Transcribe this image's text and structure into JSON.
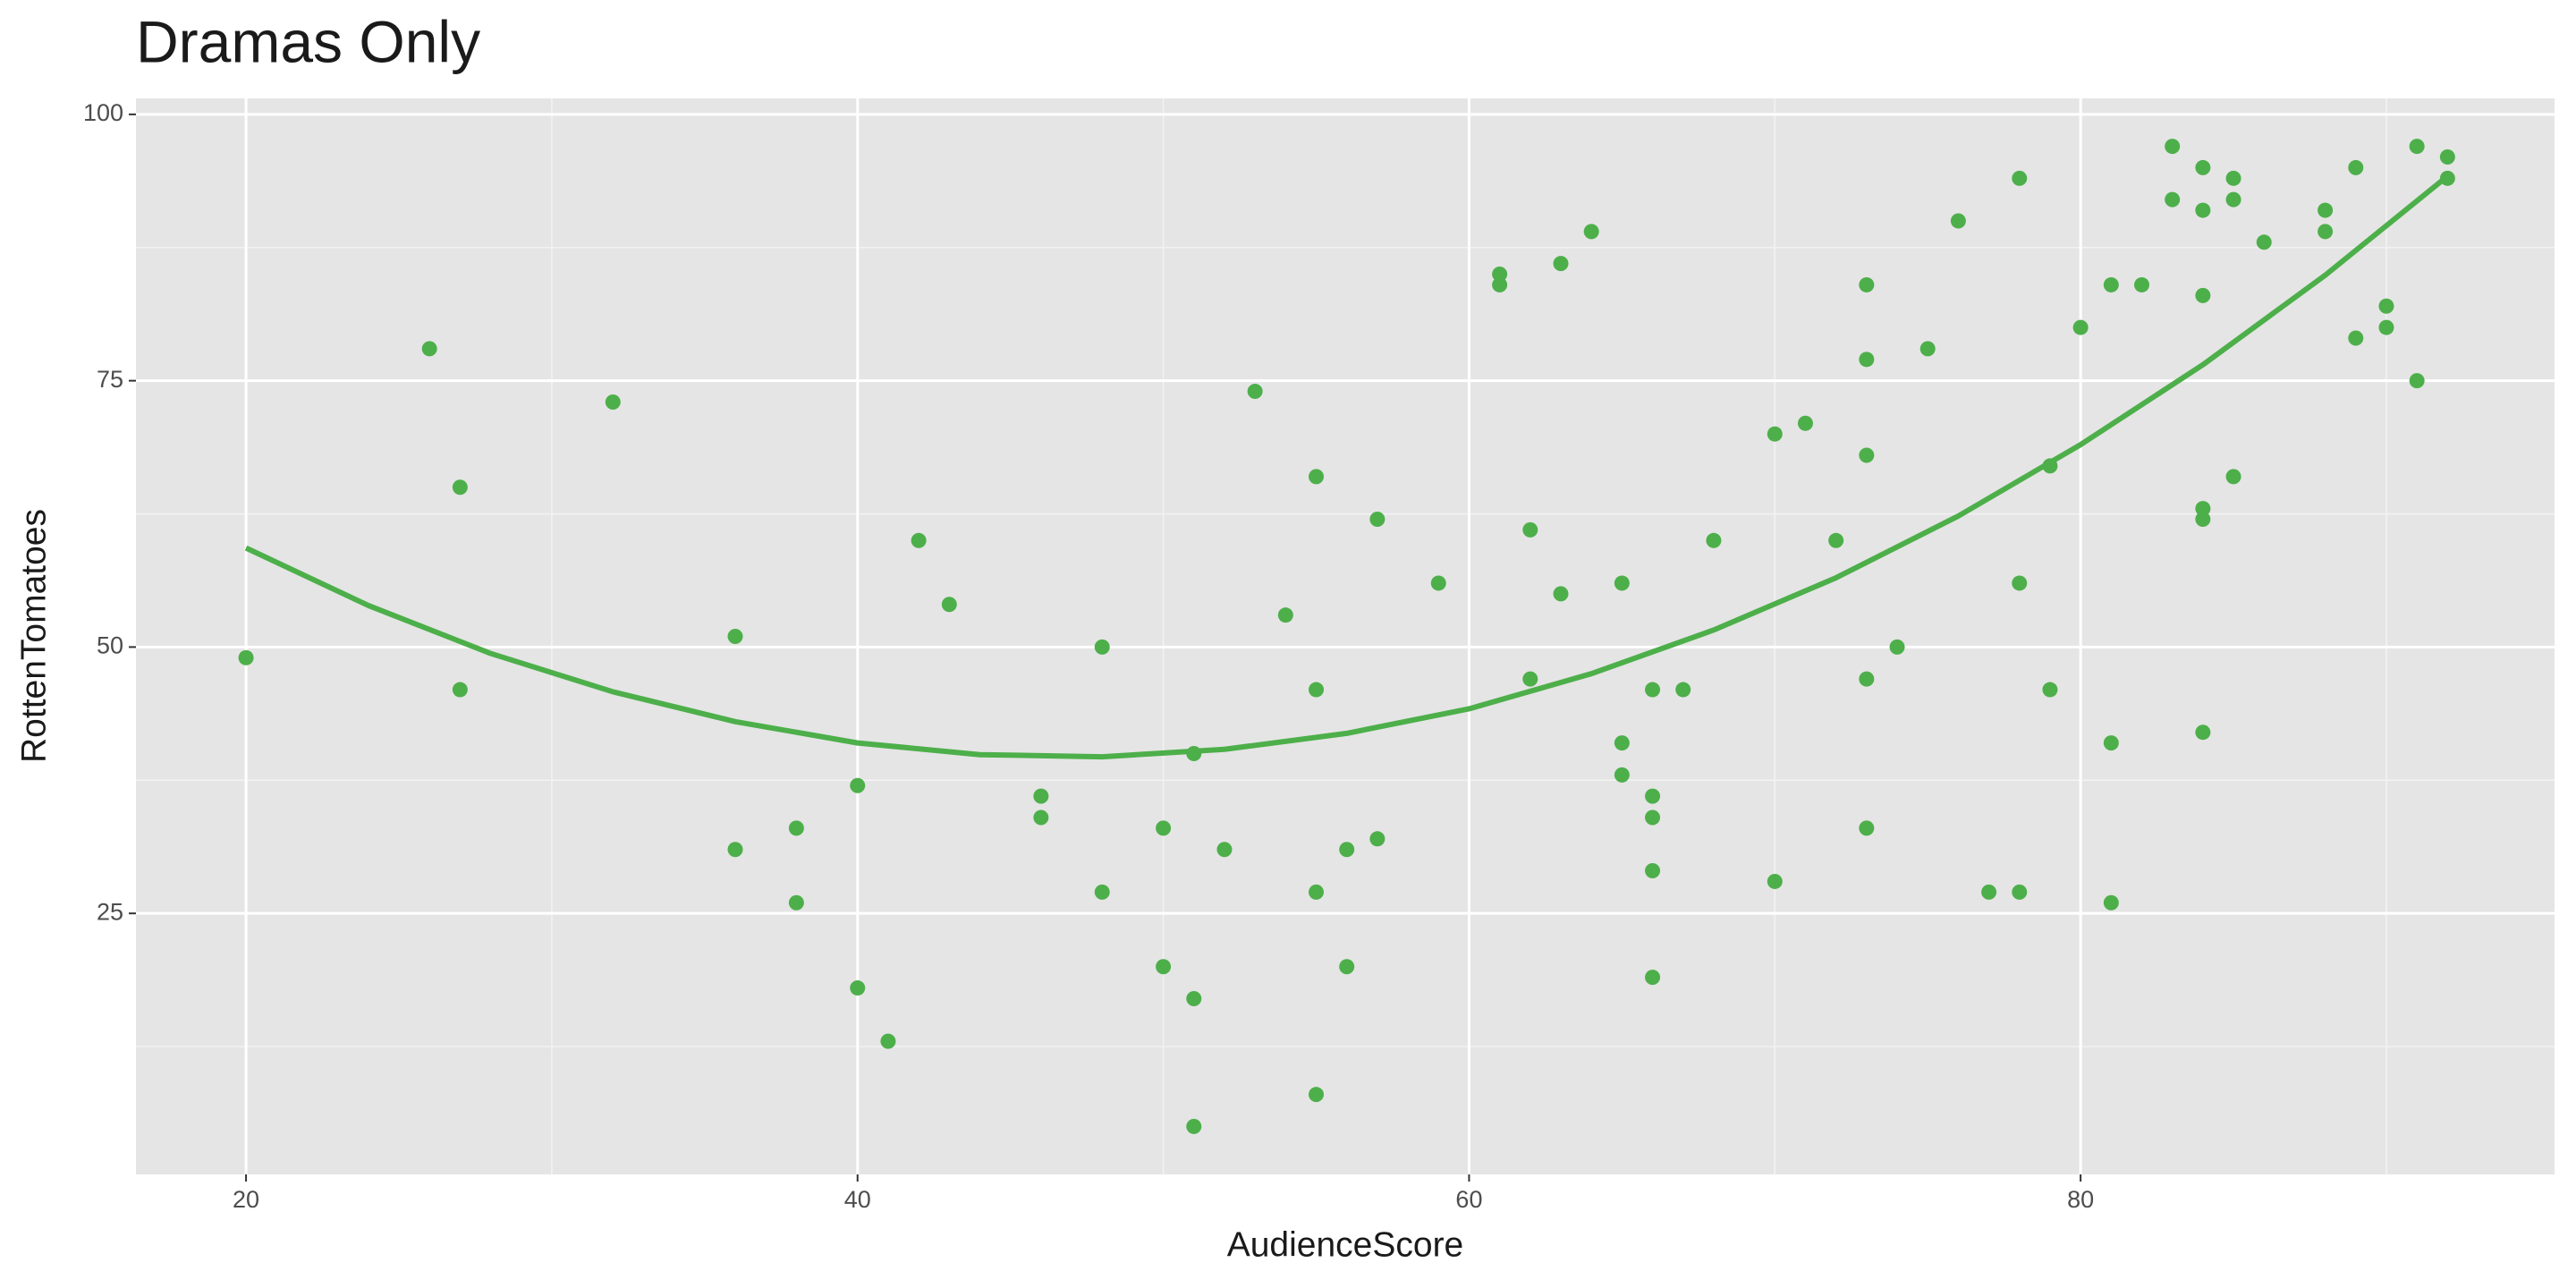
{
  "chart_data": {
    "type": "scatter",
    "title": "Dramas Only",
    "x_label": "AudienceScore",
    "y_label": "RottenTomatoes",
    "xlim": [
      16.4,
      95.5
    ],
    "ylim": [
      0.5,
      101.5
    ],
    "xticks": [
      20,
      40,
      60,
      80
    ],
    "yticks": [
      25,
      50,
      75,
      100
    ],
    "x_minor_grid": [
      30,
      50,
      70,
      90
    ],
    "y_minor_grid": [
      12.5,
      37.5,
      62.5,
      87.5
    ],
    "grid": true,
    "series": [
      {
        "marker": "point",
        "color": "#4daf4a",
        "x": [
          20,
          26,
          27,
          27,
          32,
          36,
          36,
          38,
          38,
          40,
          40,
          41,
          42,
          43,
          46,
          46,
          48,
          48,
          50,
          50,
          51,
          51,
          51,
          52,
          53,
          54,
          55,
          55,
          55,
          55,
          56,
          56,
          57,
          57,
          59,
          61,
          61,
          62,
          62,
          63,
          63,
          64,
          65,
          65,
          65,
          66,
          66,
          66,
          66,
          66,
          67,
          68,
          70,
          70,
          71,
          72,
          73,
          73,
          73,
          73,
          73,
          74,
          75,
          76,
          77,
          78,
          78,
          78,
          79,
          79,
          80,
          81,
          81,
          81,
          82,
          83,
          83,
          84,
          84,
          84,
          84,
          84,
          84,
          85,
          85,
          85,
          86,
          88,
          88,
          89,
          89,
          90,
          90,
          91,
          91,
          92,
          92
        ],
        "values": [
          49,
          78,
          65,
          46,
          73,
          51,
          31,
          33,
          26,
          37,
          18,
          13,
          60,
          54,
          36,
          34,
          50,
          27,
          33,
          20,
          40,
          17,
          5,
          31,
          74,
          53,
          66,
          46,
          27,
          8,
          31,
          20,
          62,
          32,
          56,
          85,
          84,
          61,
          47,
          86,
          55,
          89,
          56,
          41,
          38,
          46,
          36,
          34,
          29,
          19,
          46,
          60,
          70,
          28,
          71,
          60,
          84,
          77,
          68,
          47,
          33,
          50,
          78,
          90,
          27,
          94,
          56,
          27,
          67,
          46,
          80,
          84,
          41,
          26,
          84,
          97,
          92,
          95,
          91,
          83,
          63,
          62,
          42,
          94,
          92,
          66,
          88,
          91,
          89,
          95,
          79,
          82,
          80,
          97,
          75,
          96,
          94
        ]
      },
      {
        "marker": "line",
        "color": "#4daf4a",
        "x": [
          20,
          24,
          28,
          32,
          36,
          40,
          44,
          48,
          52,
          56,
          60,
          64,
          68,
          72,
          76,
          80,
          84,
          88,
          92
        ],
        "values": [
          59.3,
          53.9,
          49.4,
          45.8,
          43.0,
          41.0,
          39.9,
          39.7,
          40.4,
          41.9,
          44.2,
          47.5,
          51.6,
          56.5,
          62.3,
          69.0,
          76.5,
          84.9,
          94.2
        ]
      }
    ]
  }
}
